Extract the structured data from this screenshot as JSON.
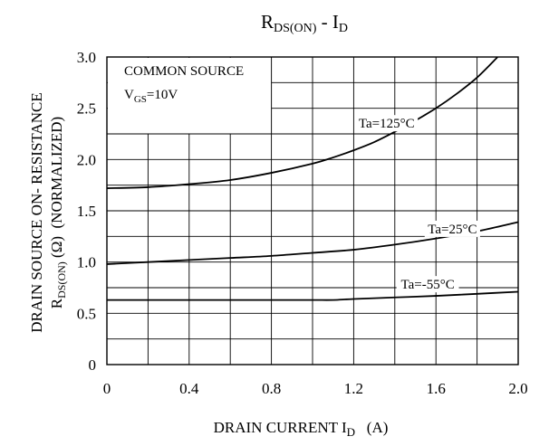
{
  "chart_data": {
    "type": "line",
    "title": {
      "main": "R",
      "main_sub": "DS(ON)",
      "sep": " - ",
      "var": "I",
      "var_sub": "D"
    },
    "xlabel": {
      "text": "DRAIN CURRENT I",
      "sub": "D",
      "unit": "(A)"
    },
    "ylabel": {
      "line1": "DRAIN SOURCE ON- RESISTANCE",
      "line2_main": "R",
      "line2_sub": "DS(ON)",
      "line2_rest": " (Ω)  (NORMALIZED)"
    },
    "xlim": [
      0,
      2.0
    ],
    "ylim": [
      0,
      3.0
    ],
    "x_ticks": [
      0,
      0.4,
      0.8,
      1.2,
      1.6,
      2.0
    ],
    "x_tick_labels": [
      "0",
      "0.4",
      "0.8",
      "1.2",
      "1.6",
      "2.0"
    ],
    "y_ticks": [
      0,
      0.5,
      1.0,
      1.5,
      2.0,
      2.5,
      3.0
    ],
    "y_tick_labels": [
      "0",
      "0.5",
      "1.0",
      "1.5",
      "2.0",
      "2.5",
      "3.0"
    ],
    "grid": true,
    "annotation": {
      "line1": "COMMON SOURCE",
      "line2_main": "V",
      "line2_sub": "GS",
      "line2_rest": "=10V"
    },
    "series": [
      {
        "name": "Ta=125°C",
        "x": [
          0,
          0.2,
          0.4,
          0.6,
          0.8,
          1.0,
          1.1,
          1.2,
          1.3,
          1.4,
          1.5,
          1.6,
          1.7,
          1.8,
          1.9
        ],
        "y": [
          1.72,
          1.73,
          1.76,
          1.8,
          1.87,
          1.96,
          2.02,
          2.09,
          2.17,
          2.27,
          2.38,
          2.5,
          2.64,
          2.8,
          3.0
        ]
      },
      {
        "name": "Ta=25°C",
        "x": [
          0,
          0.2,
          0.4,
          0.6,
          0.8,
          1.0,
          1.2,
          1.4,
          1.6,
          1.8,
          2.0
        ],
        "y": [
          0.98,
          1.0,
          1.02,
          1.04,
          1.06,
          1.09,
          1.12,
          1.17,
          1.23,
          1.3,
          1.39
        ]
      },
      {
        "name": "Ta=-55°C",
        "x": [
          0,
          0.2,
          0.4,
          0.6,
          0.8,
          1.0,
          1.1,
          1.2,
          1.4,
          1.6,
          1.8,
          2.0
        ],
        "y": [
          0.63,
          0.63,
          0.63,
          0.63,
          0.63,
          0.63,
          0.63,
          0.64,
          0.655,
          0.67,
          0.69,
          0.71
        ]
      }
    ]
  }
}
